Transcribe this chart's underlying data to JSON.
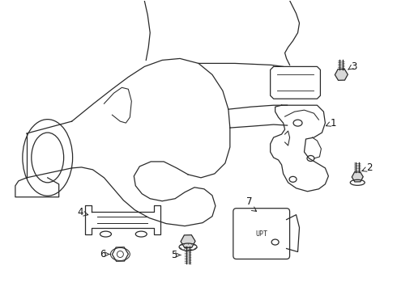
{
  "bg_color": "#ffffff",
  "line_color": "#2a2a2a",
  "figsize": [
    4.9,
    3.6
  ],
  "dpi": 100
}
